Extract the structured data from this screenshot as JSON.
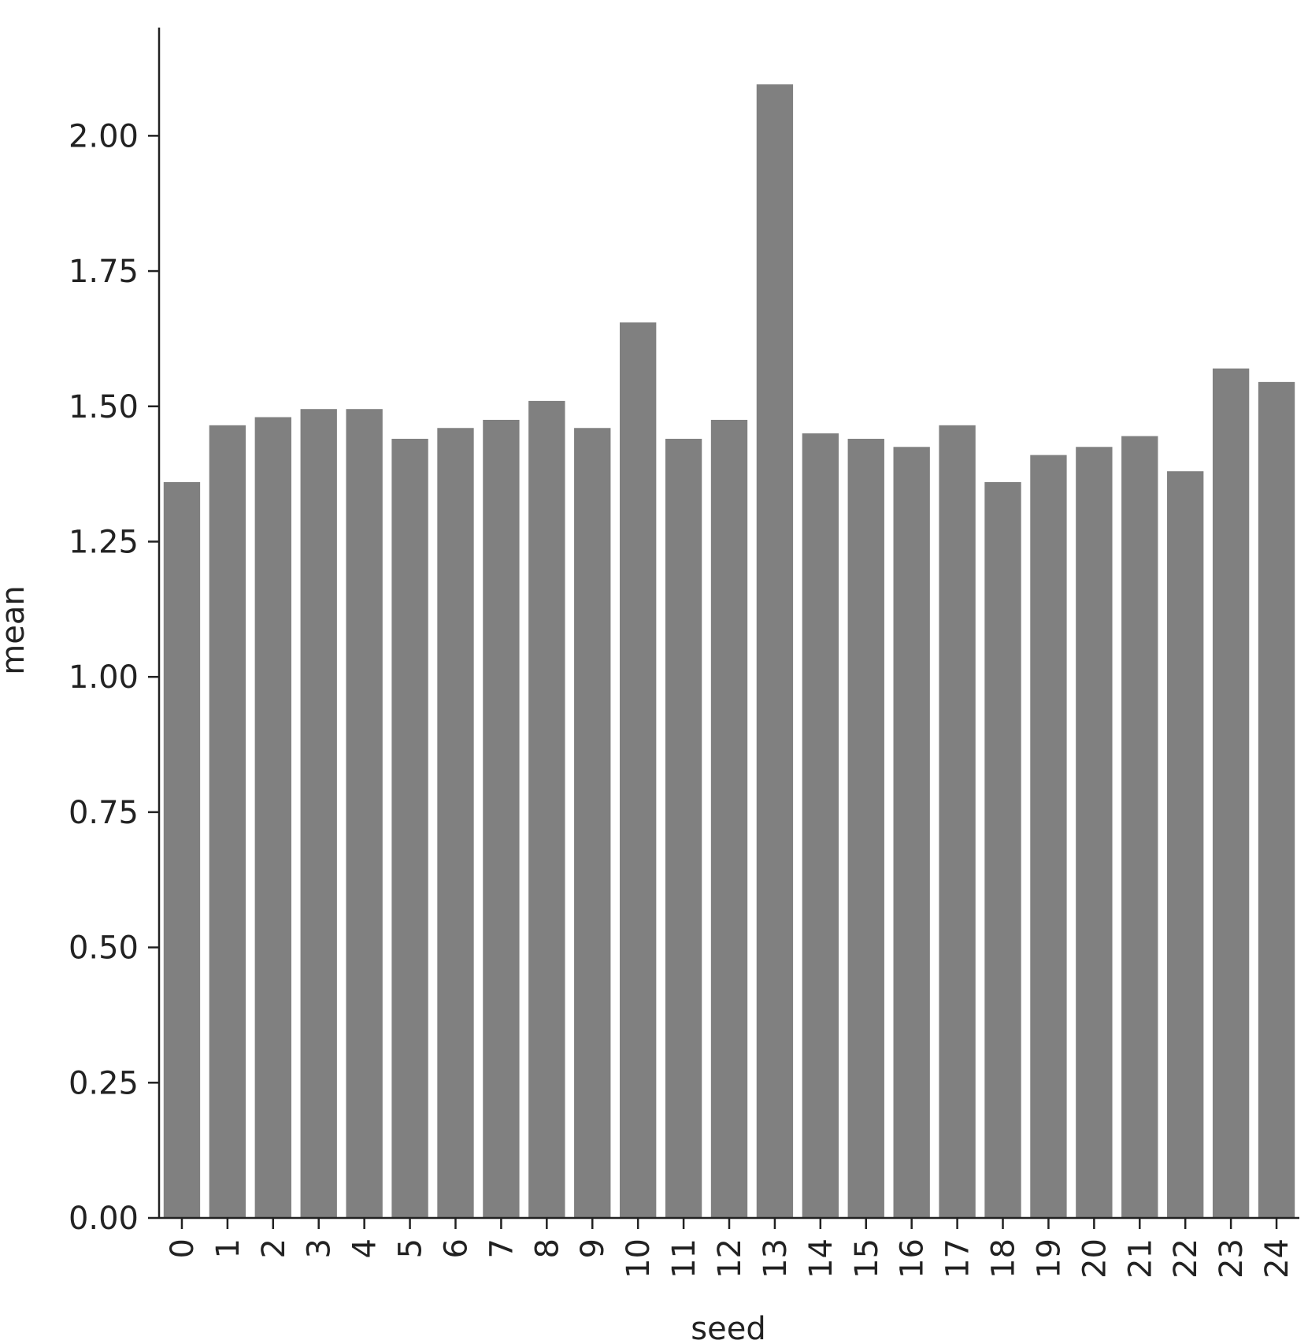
{
  "chart_data": {
    "type": "bar",
    "title": "",
    "xlabel": "seed",
    "ylabel": "mean",
    "ylim": [
      0,
      2.2
    ],
    "yticks": [
      "0.00",
      "0.25",
      "0.50",
      "0.75",
      "1.00",
      "1.25",
      "1.50",
      "1.75",
      "2.00"
    ],
    "categories": [
      "0",
      "1",
      "2",
      "3",
      "4",
      "5",
      "6",
      "7",
      "8",
      "9",
      "10",
      "11",
      "12",
      "13",
      "14",
      "15",
      "16",
      "17",
      "18",
      "19",
      "20",
      "21",
      "22",
      "23",
      "24"
    ],
    "values": [
      1.36,
      1.465,
      1.48,
      1.495,
      1.495,
      1.44,
      1.46,
      1.475,
      1.51,
      1.46,
      1.655,
      1.44,
      1.475,
      2.095,
      1.45,
      1.44,
      1.425,
      1.465,
      1.36,
      1.41,
      1.425,
      1.445,
      1.38,
      1.57,
      1.545
    ],
    "bar_color": "#808080",
    "axis_color": "#222222",
    "grid": false,
    "legend": "none"
  }
}
